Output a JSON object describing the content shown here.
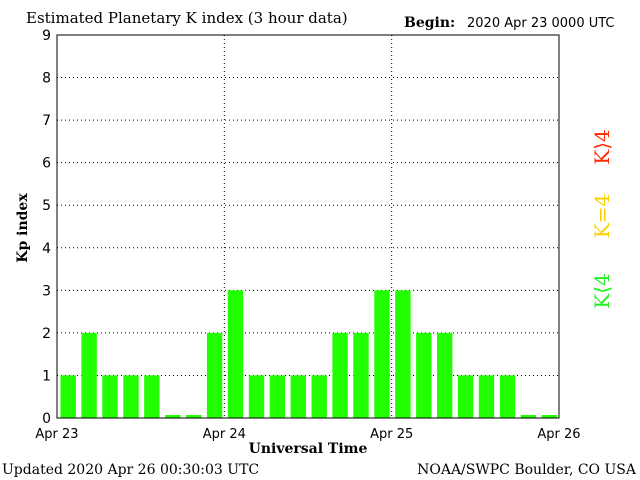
{
  "header": {
    "title": "Estimated Planetary K index (3 hour data)",
    "begin_label": "Begin:",
    "begin_value": "2020 Apr 23 0000 UTC"
  },
  "footer": {
    "updated": "Updated 2020 Apr 26 00:30:03 UTC",
    "source": "NOAA/SWPC Boulder, CO USA"
  },
  "legend": {
    "high": "K⟩4",
    "equal": "K=4",
    "low": "K⟨4",
    "high_color": "#ff2a00",
    "equal_color": "#ffd000",
    "low_color": "#22ee22"
  },
  "chart_data": {
    "type": "bar",
    "title": "Estimated Planetary K index (3 hour data)",
    "xlabel": "Universal Time",
    "ylabel": "Kp index",
    "ylim": [
      0,
      9
    ],
    "yticks": [
      "0",
      "1",
      "2",
      "3",
      "4",
      "5",
      "6",
      "7",
      "8",
      "9"
    ],
    "day_labels": [
      "Apr 23",
      "Apr 24",
      "Apr 25",
      "Apr 26"
    ],
    "interval_hours": 3,
    "values": [
      1,
      2,
      1,
      1,
      1,
      0,
      0,
      2,
      3,
      1,
      1,
      1,
      1,
      2,
      2,
      3,
      3,
      2,
      2,
      1,
      1,
      1,
      0,
      0
    ],
    "bar_color": "#22ff00",
    "grid": "dotted, at day boundaries and each integer Kp"
  }
}
